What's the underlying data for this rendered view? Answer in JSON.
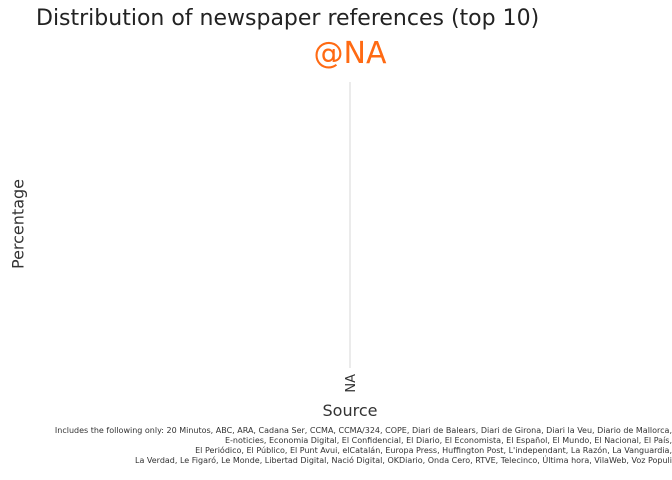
{
  "chart_data": {
    "type": "bar",
    "title": "Distribution of newspaper references (top 10)",
    "facet_label": "@NA",
    "xlabel": "Source",
    "ylabel": "Percentage",
    "categories": [
      "NA"
    ],
    "values": [
      null
    ],
    "grid": true,
    "caption_lines": [
      "Includes the following only: 20 Minutos, ABC, ARA, Cadana Ser, CCMA, CCMA/324, COPE, Diari de Balears, Diari de Girona, Diari la Veu, Diario de Mallorca,",
      "E-noticies, Economia Digital, El Confidencial, El Diario, El Economista, El Español, El Mundo, El Nacional, El País,",
      "El Periódico, El Público, El Punt Avui, elCatalán, Europa Press, Huffington Post, L'independant, La Razón, La Vanguardia,",
      "La Verdad, Le Figaró, Le Monde, Libertad Digital, Nació Digital, OKDiario, Onda Cero, RTVE, Telecinco, Última hora, VilaWeb, Voz Populi"
    ]
  },
  "colors": {
    "facet_label": "#ff6a13",
    "grid": "#ebebeb",
    "text": "#333333"
  }
}
